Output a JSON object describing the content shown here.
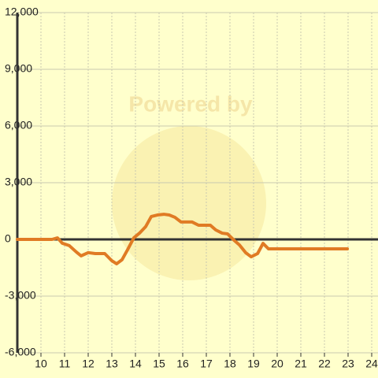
{
  "chart_data": {
    "type": "line",
    "watermark": "Powered by",
    "x": [
      9.0,
      10.47,
      10.7,
      10.9,
      11.2,
      11.5,
      11.7,
      12.0,
      12.3,
      12.7,
      13.0,
      13.2,
      13.43,
      13.67,
      13.93,
      14.17,
      14.43,
      14.67,
      14.93,
      15.2,
      15.43,
      15.67,
      15.93,
      16.4,
      16.67,
      17.17,
      17.4,
      17.67,
      17.9,
      18.17,
      18.4,
      18.67,
      18.9,
      19.17,
      19.4,
      19.63,
      22.97
    ],
    "series": [
      {
        "color": "#e07b24",
        "values": [
          0,
          0,
          80,
          -200,
          -330,
          -670,
          -870,
          -700,
          -750,
          -750,
          -1130,
          -1290,
          -1080,
          -540,
          80,
          330,
          670,
          1210,
          1290,
          1330,
          1290,
          1170,
          920,
          920,
          750,
          750,
          500,
          330,
          290,
          -40,
          -290,
          -710,
          -920,
          -750,
          -210,
          -500,
          -500
        ]
      }
    ],
    "xlim": [
      9,
      24.3
    ],
    "xticks": [
      10,
      11,
      12,
      13,
      14,
      15,
      16,
      17,
      18,
      19,
      20,
      21,
      22,
      23,
      24
    ],
    "ylim": [
      -6000,
      12000
    ],
    "yticks": [
      {
        "value": -6000,
        "label": "-6,000"
      },
      {
        "value": -3000,
        "label": "-3,000"
      },
      0,
      {
        "value": 3000,
        "label": "3,000"
      },
      {
        "value": 6000,
        "label": "6,000"
      },
      {
        "value": 9000,
        "label": "9,000"
      },
      {
        "value": 12000,
        "label": "12,000"
      }
    ],
    "grid": true
  }
}
